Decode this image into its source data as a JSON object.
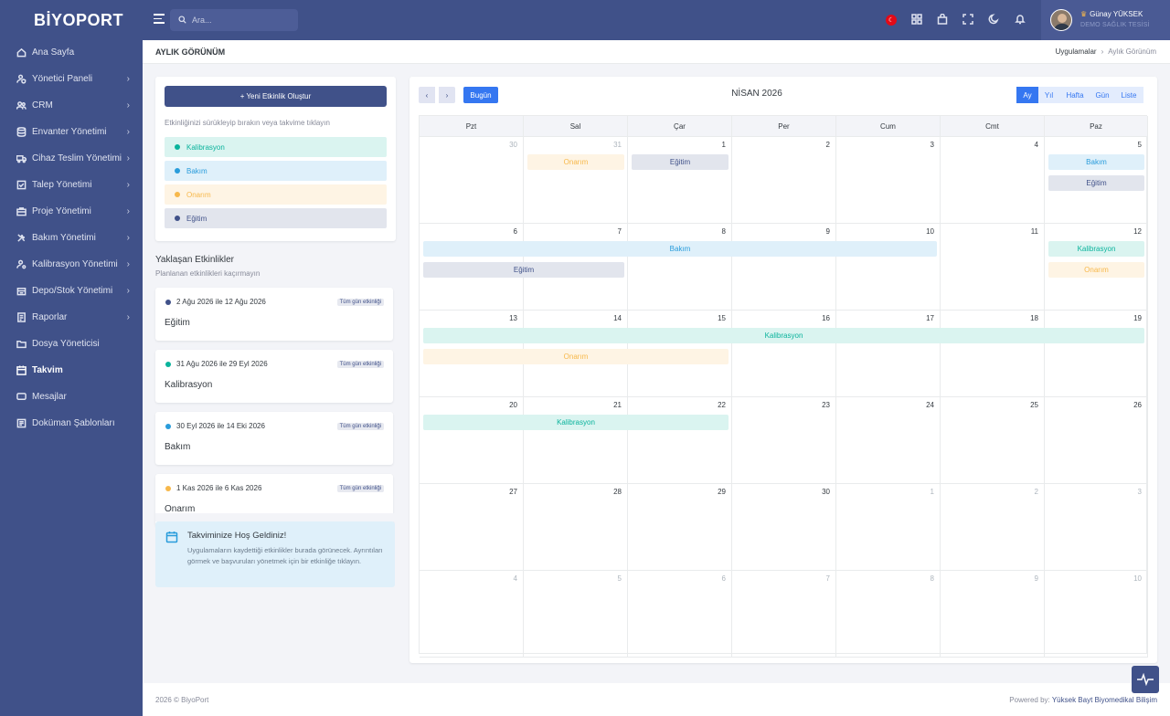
{
  "brand": "BİYOPORT",
  "sidebar": {
    "items": [
      {
        "label": "Ana Sayfa",
        "icon": "home-icon",
        "chevron": false
      },
      {
        "label": "Yönetici Paneli",
        "icon": "user-shield-icon",
        "chevron": true
      },
      {
        "label": "CRM",
        "icon": "users-icon",
        "chevron": true
      },
      {
        "label": "Envanter Yönetimi",
        "icon": "database-icon",
        "chevron": true
      },
      {
        "label": "Cihaz Teslim Yönetimi",
        "icon": "truck-icon",
        "chevron": true
      },
      {
        "label": "Talep Yönetimi",
        "icon": "checkbox-icon",
        "chevron": true
      },
      {
        "label": "Proje Yönetimi",
        "icon": "briefcase-icon",
        "chevron": true
      },
      {
        "label": "Bakım Yönetimi",
        "icon": "tools-icon",
        "chevron": true
      },
      {
        "label": "Kalibrasyon Yönetimi",
        "icon": "user-gear-icon",
        "chevron": true
      },
      {
        "label": "Depo/Stok Yönetimi",
        "icon": "warehouse-icon",
        "chevron": true
      },
      {
        "label": "Raporlar",
        "icon": "report-icon",
        "chevron": true
      },
      {
        "label": "Dosya Yöneticisi",
        "icon": "folder-icon",
        "chevron": false
      },
      {
        "label": "Takvim",
        "icon": "calendar-icon",
        "chevron": false,
        "active": true
      },
      {
        "label": "Mesajlar",
        "icon": "message-icon",
        "chevron": false
      },
      {
        "label": "Doküman Şablonları",
        "icon": "document-icon",
        "chevron": false
      }
    ]
  },
  "topbar": {
    "search_placeholder": "Ara...",
    "user_name": "Günay YÜKSEK",
    "company": "DEMO SAĞLIK TESİSİ"
  },
  "page": {
    "title": "AYLIK GÖRÜNÜM",
    "breadcrumb": [
      "Uygulamalar",
      "Aylık Görünüm"
    ]
  },
  "panel": {
    "new_event": "+ Yeni Etkinlik Oluştur",
    "hint": "Etkinliğinizi sürükleyip bırakın veya takvime tıklayın",
    "types": [
      {
        "label": "Kalibrasyon",
        "color": "#0ab39c",
        "bg": "#daf4f0"
      },
      {
        "label": "Bakım",
        "color": "#299cdb",
        "bg": "#dff0fa"
      },
      {
        "label": "Onarım",
        "color": "#f7b84b",
        "bg": "#fef4e4"
      },
      {
        "label": "Eğitim",
        "color": "#405189",
        "bg": "#e2e5ed"
      }
    ]
  },
  "upcoming": {
    "title": "Yaklaşan Etkinlikler",
    "subtitle": "Planlanan etkinlikleri kaçırmayın",
    "badge": "Tüm gün etkinliği",
    "events": [
      {
        "date": "2 Ağu 2026 ile 12 Ağu 2026",
        "name": "Eğitim",
        "color": "#405189"
      },
      {
        "date": "31 Ağu 2026 ile 29 Eyl 2026",
        "name": "Kalibrasyon",
        "color": "#0ab39c"
      },
      {
        "date": "30 Eyl 2026 ile 14 Eki 2026",
        "name": "Bakım",
        "color": "#299cdb"
      },
      {
        "date": "1 Kas 2026 ile 6 Kas 2026",
        "name": "Onarım",
        "color": "#f7b84b"
      }
    ]
  },
  "welcome": {
    "title": "Takviminize Hoş Geldiniz!",
    "body": "Uygulamaların kaydettiği etkinlikler burada görünecek. Ayrıntıları görmek ve başvuruları yönetmek için bir etkinliğe tıklayın."
  },
  "calendar": {
    "title": "NİSAN 2026",
    "today": "Bugün",
    "views": [
      {
        "label": "Ay",
        "active": true
      },
      {
        "label": "Yıl"
      },
      {
        "label": "Hafta"
      },
      {
        "label": "Gün"
      },
      {
        "label": "Liste"
      }
    ],
    "weekdays": [
      "Pzt",
      "Sal",
      "Çar",
      "Per",
      "Cum",
      "Cmt",
      "Paz"
    ],
    "weeks": [
      [
        {
          "d": "30",
          "o": true
        },
        {
          "d": "31",
          "o": true
        },
        {
          "d": "1"
        },
        {
          "d": "2"
        },
        {
          "d": "3"
        },
        {
          "d": "4"
        },
        {
          "d": "5"
        }
      ],
      [
        {
          "d": "6"
        },
        {
          "d": "7"
        },
        {
          "d": "8"
        },
        {
          "d": "9"
        },
        {
          "d": "10"
        },
        {
          "d": "11"
        },
        {
          "d": "12"
        }
      ],
      [
        {
          "d": "13"
        },
        {
          "d": "14"
        },
        {
          "d": "15"
        },
        {
          "d": "16"
        },
        {
          "d": "17"
        },
        {
          "d": "18"
        },
        {
          "d": "19"
        }
      ],
      [
        {
          "d": "20"
        },
        {
          "d": "21"
        },
        {
          "d": "22"
        },
        {
          "d": "23"
        },
        {
          "d": "24"
        },
        {
          "d": "25"
        },
        {
          "d": "26"
        }
      ],
      [
        {
          "d": "27"
        },
        {
          "d": "28"
        },
        {
          "d": "29"
        },
        {
          "d": "30"
        },
        {
          "d": "1",
          "o": true
        },
        {
          "d": "2",
          "o": true
        },
        {
          "d": "3",
          "o": true
        }
      ],
      [
        {
          "d": "4",
          "o": true
        },
        {
          "d": "5",
          "o": true
        },
        {
          "d": "6",
          "o": true
        },
        {
          "d": "7",
          "o": true
        },
        {
          "d": "8",
          "o": true
        },
        {
          "d": "9",
          "o": true
        },
        {
          "d": "10",
          "o": true
        }
      ]
    ],
    "events": [
      {
        "label": "Onarım",
        "type": 2,
        "week": 0,
        "start": 1,
        "end": 1,
        "lane": 0
      },
      {
        "label": "Eğitim",
        "type": 3,
        "week": 0,
        "start": 2,
        "end": 2,
        "lane": 0
      },
      {
        "label": "Bakım",
        "type": 1,
        "week": 0,
        "start": 6,
        "end": 6,
        "lane": 0
      },
      {
        "label": "Eğitim",
        "type": 3,
        "week": 0,
        "start": 6,
        "end": 6,
        "lane": 1
      },
      {
        "label": "Bakım",
        "type": 1,
        "week": 1,
        "start": 0,
        "end": 4,
        "lane": 0
      },
      {
        "label": "Eğitim",
        "type": 3,
        "week": 1,
        "start": 0,
        "end": 1,
        "lane": 1
      },
      {
        "label": "Kalibrasyon",
        "type": 0,
        "week": 1,
        "start": 6,
        "end": 6,
        "lane": 0
      },
      {
        "label": "Onarım",
        "type": 2,
        "week": 1,
        "start": 6,
        "end": 6,
        "lane": 1
      },
      {
        "label": "Kalibrasyon",
        "type": 0,
        "week": 2,
        "start": 0,
        "end": 6,
        "lane": 0
      },
      {
        "label": "Onarım",
        "type": 2,
        "week": 2,
        "start": 0,
        "end": 2,
        "lane": 1
      },
      {
        "label": "Kalibrasyon",
        "type": 0,
        "week": 3,
        "start": 0,
        "end": 2,
        "lane": 0
      }
    ]
  },
  "footer": {
    "left": "2026 © BiyoPort",
    "right_prefix": "Powered by: ",
    "right_link": "Yüksek Bayt Biyomedikal Bilişim"
  }
}
